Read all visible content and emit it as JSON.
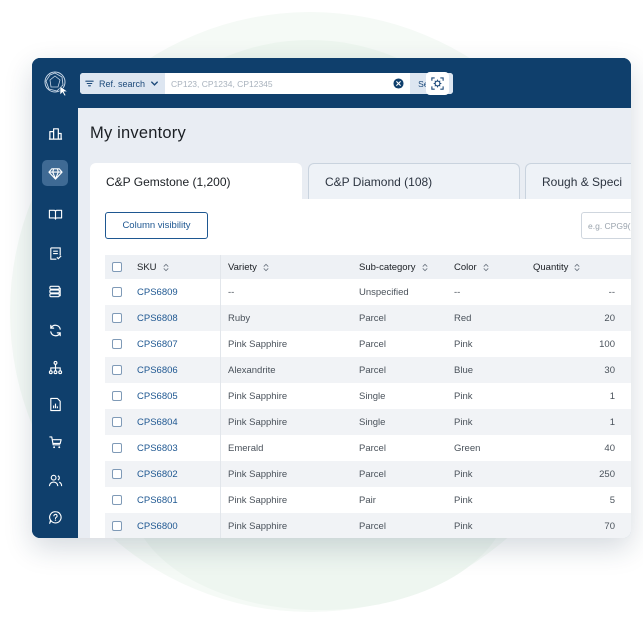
{
  "colors": {
    "navy": "#0f3f6c",
    "accent": "#1e5791",
    "active_nav": "#3f6a94"
  },
  "search": {
    "type_label": "Ref. search",
    "placeholder": "CP123, CP1234, CP12345",
    "button_label": "Search"
  },
  "sidebar": {
    "items": [
      {
        "icon": "buildings-icon"
      },
      {
        "icon": "gem-icon",
        "active": true
      },
      {
        "icon": "book-icon"
      },
      {
        "icon": "document-check-icon"
      },
      {
        "icon": "stack-icon"
      },
      {
        "icon": "refresh-icon"
      },
      {
        "icon": "hierarchy-icon"
      },
      {
        "icon": "report-icon"
      },
      {
        "icon": "cart-icon"
      },
      {
        "icon": "users-icon"
      },
      {
        "icon": "support-icon"
      }
    ]
  },
  "page": {
    "title": "My inventory"
  },
  "tabs": [
    {
      "label": "C&P Gemstone (1,200)",
      "active": true
    },
    {
      "label": "C&P Diamond (108)",
      "active": false
    },
    {
      "label": "Rough & Speci",
      "active": false
    }
  ],
  "toolbar": {
    "column_visibility_label": "Column visibility",
    "filter_placeholder": "e.g. CPG9("
  },
  "table": {
    "headers": {
      "sku": "SKU",
      "variety": "Variety",
      "sub_category": "Sub-category",
      "color": "Color",
      "quantity": "Quantity"
    },
    "rows": [
      {
        "sku": "CPS6809",
        "variety": "--",
        "sub_category": "Unspecified",
        "color": "--",
        "quantity": "--"
      },
      {
        "sku": "CPS6808",
        "variety": "Ruby",
        "sub_category": "Parcel",
        "color": "Red",
        "quantity": "20"
      },
      {
        "sku": "CPS6807",
        "variety": "Pink Sapphire",
        "sub_category": "Parcel",
        "color": "Pink",
        "quantity": "100"
      },
      {
        "sku": "CPS6806",
        "variety": "Alexandrite",
        "sub_category": "Parcel",
        "color": "Blue",
        "quantity": "30"
      },
      {
        "sku": "CPS6805",
        "variety": "Pink Sapphire",
        "sub_category": "Single",
        "color": "Pink",
        "quantity": "1"
      },
      {
        "sku": "CPS6804",
        "variety": "Pink Sapphire",
        "sub_category": "Single",
        "color": "Pink",
        "quantity": "1"
      },
      {
        "sku": "CPS6803",
        "variety": "Emerald",
        "sub_category": "Parcel",
        "color": "Green",
        "quantity": "40"
      },
      {
        "sku": "CPS6802",
        "variety": "Pink Sapphire",
        "sub_category": "Parcel",
        "color": "Pink",
        "quantity": "250"
      },
      {
        "sku": "CPS6801",
        "variety": "Pink Sapphire",
        "sub_category": "Pair",
        "color": "Pink",
        "quantity": "5"
      },
      {
        "sku": "CPS6800",
        "variety": "Pink Sapphire",
        "sub_category": "Parcel",
        "color": "Pink",
        "quantity": "70"
      }
    ]
  }
}
